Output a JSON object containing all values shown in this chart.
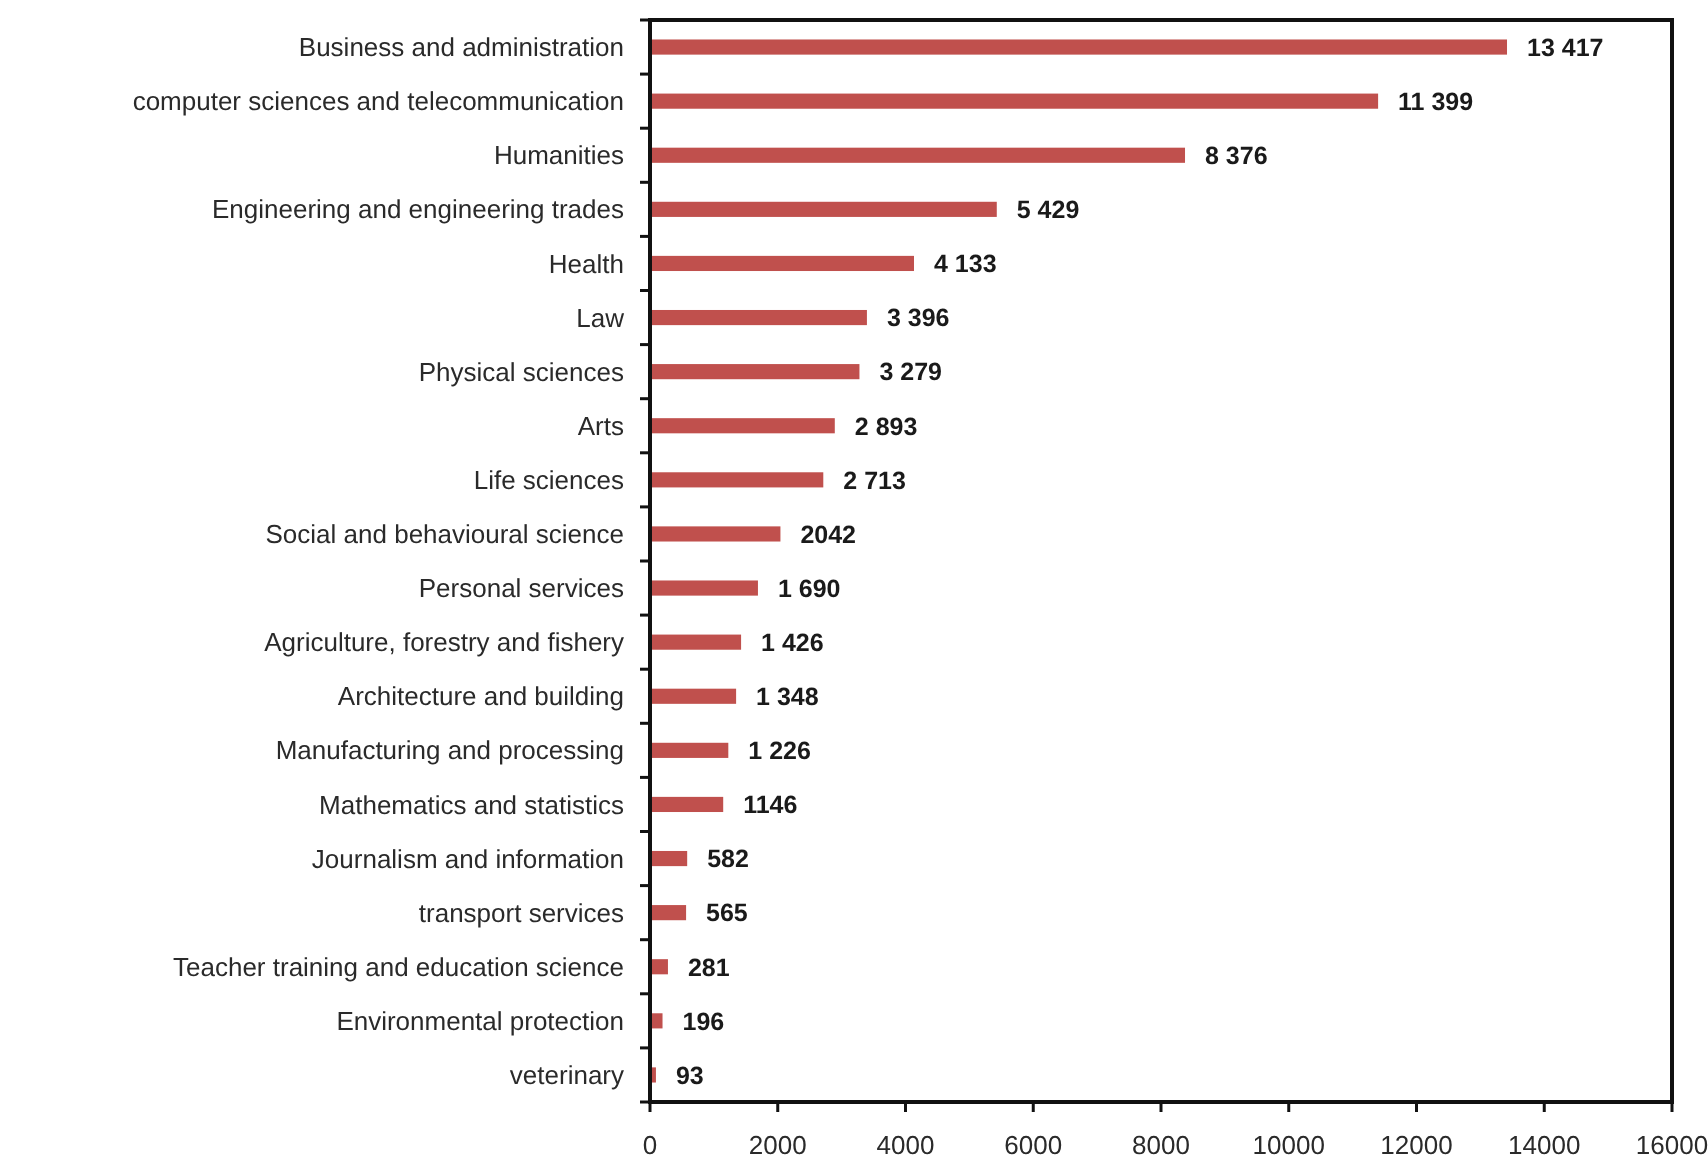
{
  "chart_data": {
    "type": "bar",
    "orientation": "horizontal",
    "categories": [
      "Business and administration",
      "computer sciences and telecommunication",
      "Humanities",
      "Engineering and engineering trades",
      "Health",
      "Law",
      "Physical sciences",
      "Arts",
      "Life sciences",
      "Social and behavioural science",
      "Personal services",
      "Agriculture, forestry and fishery",
      "Architecture and building",
      "Manufacturing and processing",
      "Mathematics and statistics",
      "Journalism and information",
      "transport services",
      "Teacher training and education science",
      "Environmental protection",
      "veterinary"
    ],
    "values": [
      13417,
      11399,
      8376,
      5429,
      4133,
      3396,
      3279,
      2893,
      2713,
      2042,
      1690,
      1426,
      1348,
      1226,
      1146,
      582,
      565,
      281,
      196,
      93
    ],
    "value_labels": [
      "13 417",
      "11 399",
      "8 376",
      "5 429",
      "4 133",
      "3 396",
      "3 279",
      "2 893",
      "2 713",
      "2042",
      "1 690",
      "1 426",
      "1 348",
      "1 226",
      "1146",
      "582",
      "565",
      "281",
      "196",
      "93"
    ],
    "color": "#c0504d",
    "xlim": [
      0,
      16000
    ],
    "xticks": [
      0,
      2000,
      4000,
      6000,
      8000,
      10000,
      12000,
      14000,
      16000
    ]
  }
}
